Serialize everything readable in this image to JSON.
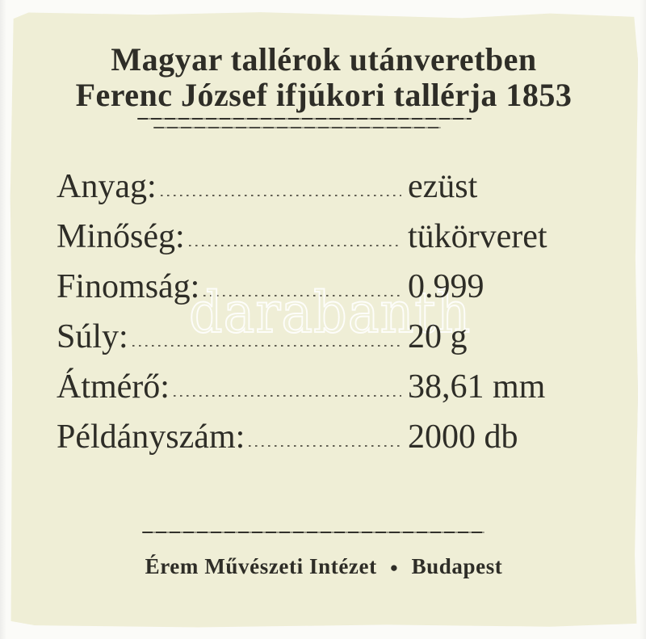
{
  "certificate": {
    "title_line1": "Magyar tallérok utánveretben",
    "title_line2": "Ferenc József ifjúkori tallérja 1853",
    "fields": [
      {
        "label": "Anyag:",
        "value": "ezüst"
      },
      {
        "label": "Minőség:",
        "value": "tükörveret"
      },
      {
        "label": "Finomság:",
        "value": "0.999"
      },
      {
        "label": "Súly:",
        "value": "20 g"
      },
      {
        "label": "Átmérő:",
        "value": "38,61 mm"
      },
      {
        "label": "Példányszám:",
        "value": "2000 db"
      }
    ],
    "footer": {
      "issuer": "Érem Művészeti Intézet",
      "separator": "●",
      "city": "Budapest"
    },
    "watermark": "darabanth",
    "colors": {
      "paper": "#efeed6",
      "background": "#fbfbf8",
      "ink": "#2e2d27"
    }
  }
}
